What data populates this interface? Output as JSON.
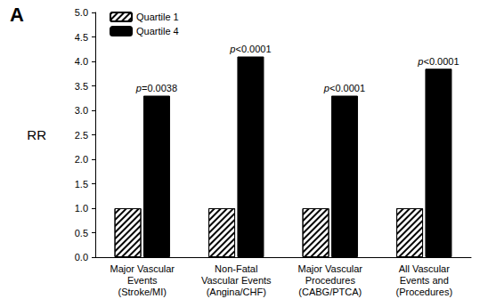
{
  "chart_data": {
    "type": "bar",
    "title": "A",
    "y_label": "RR",
    "categories": [
      "Major Vascular\nEvents\n(Stroke/MI)",
      "Non-Fatal\nVascular Events\n(Angina/CHF)",
      "Major Vascular\nProcedures\n(CABG/PTCA)",
      "All Vascular\nEvents and\n(Procedures)"
    ],
    "series": [
      {
        "name": "Quartile 1",
        "color": "#ffffff",
        "values": [
          1.0,
          1.0,
          1.0,
          1.0
        ]
      },
      {
        "name": "Quartile 4",
        "color": "#000000",
        "values": [
          3.3,
          4.1,
          3.3,
          3.85
        ],
        "annotations": [
          "p=0.0038",
          "p<0.0001",
          "p<0.0001",
          "p<0.0001"
        ]
      }
    ],
    "ylim": [
      0,
      5
    ],
    "yticks": [
      {
        "value": 0,
        "label": "0.0"
      },
      0.5,
      {
        "value": 1,
        "label": "1.0"
      },
      1.5,
      {
        "value": 2,
        "label": "2.0"
      },
      2.5,
      {
        "value": 3,
        "label": "3.0"
      },
      3.5,
      {
        "value": 4,
        "label": "4.0"
      },
      4.5,
      {
        "value": 5,
        "label": "5.0"
      }
    ],
    "legend": "upper left",
    "grid": false
  }
}
